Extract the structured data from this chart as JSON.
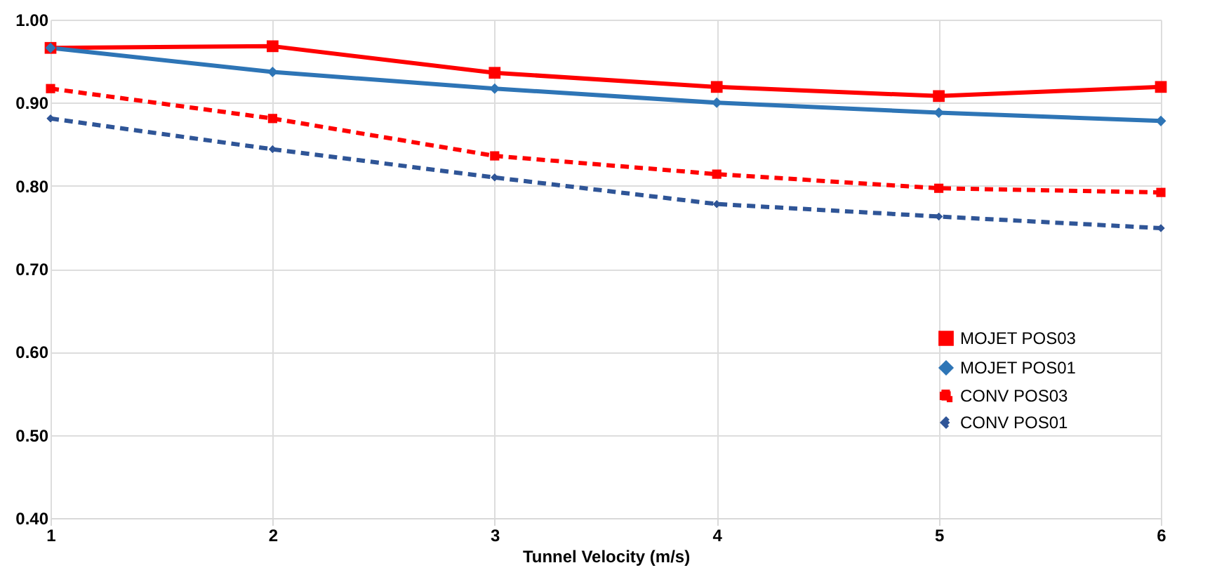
{
  "chart_data": {
    "type": "line",
    "xlabel": "Tunnel Velocity (m/s)",
    "x": [
      1,
      2,
      3,
      4,
      5,
      6
    ],
    "series": [
      {
        "name": "MOJET POS03",
        "color": "#ff0000",
        "marker": "square",
        "line_style": "solid",
        "values": [
          0.966,
          0.968,
          0.936,
          0.919,
          0.908,
          0.919
        ]
      },
      {
        "name": "MOJET POS01",
        "color": "#2e75b6",
        "marker": "diamond",
        "line_style": "solid",
        "values": [
          0.966,
          0.937,
          0.917,
          0.9,
          0.888,
          0.878
        ]
      },
      {
        "name": "CONV POS03",
        "color": "#ff0000",
        "marker": "square",
        "line_style": "dashed",
        "values": [
          0.917,
          0.881,
          0.836,
          0.814,
          0.797,
          0.792
        ]
      },
      {
        "name": "CONV POS01",
        "color": "#2f5597",
        "marker": "diamond",
        "line_style": "dashed",
        "values": [
          0.881,
          0.844,
          0.81,
          0.778,
          0.763,
          0.749
        ]
      }
    ],
    "xlim": [
      1,
      6
    ],
    "xticks": [
      1,
      2,
      3,
      4,
      5,
      6
    ],
    "ylim": [
      0.4,
      1.0
    ],
    "yticks": [
      {
        "value": 0.4,
        "label": "0.40"
      },
      {
        "value": 0.5,
        "label": "0.50"
      },
      {
        "value": 0.6,
        "label": "0.60"
      },
      {
        "value": 0.7,
        "label": "0.70"
      },
      {
        "value": 0.8,
        "label": "0.80"
      },
      {
        "value": 0.9,
        "label": "0.90"
      },
      {
        "value": 1.0,
        "label": "1.00"
      }
    ],
    "grid": true,
    "legend": "bottom right"
  }
}
